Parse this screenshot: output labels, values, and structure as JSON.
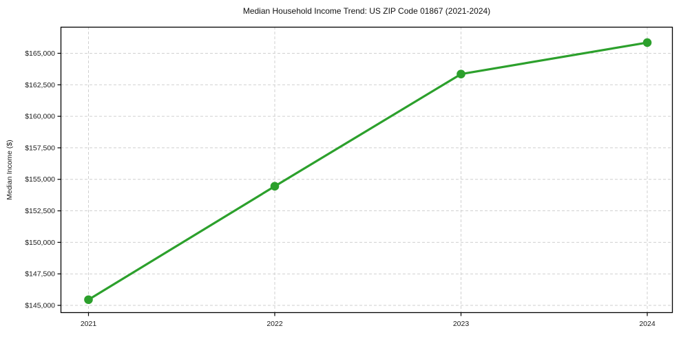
{
  "chart_data": {
    "type": "line",
    "title": "Median Household Income Trend: US ZIP Code 01867 (2021-2024)",
    "xlabel": "",
    "ylabel": "Median Income ($)",
    "categories": [
      "2021",
      "2022",
      "2023",
      "2024"
    ],
    "x": [
      2021,
      2022,
      2023,
      2024
    ],
    "series": [
      {
        "name": "Median Household Income",
        "values": [
          145450,
          154450,
          163350,
          165850
        ],
        "color": "#2ca02c",
        "marker": "circle",
        "line_style": "solid"
      }
    ],
    "ylim": [
      144400,
      167100
    ],
    "ytick_values": [
      145000,
      147500,
      150000,
      152500,
      155000,
      157500,
      160000,
      162500,
      165000
    ],
    "ytick_labels": [
      "$145,000",
      "$147,500",
      "$150,000",
      "$152,500",
      "$155,000",
      "$157,500",
      "$160,000",
      "$162,500",
      "$165,000"
    ],
    "grid": true,
    "grid_style": "dashed",
    "legend_position": "none",
    "colors": {
      "line": "#2ca02c",
      "grid": "#cfcfcf",
      "axis": "#000000",
      "text": "#1a1a1a",
      "background": "#ffffff"
    }
  }
}
